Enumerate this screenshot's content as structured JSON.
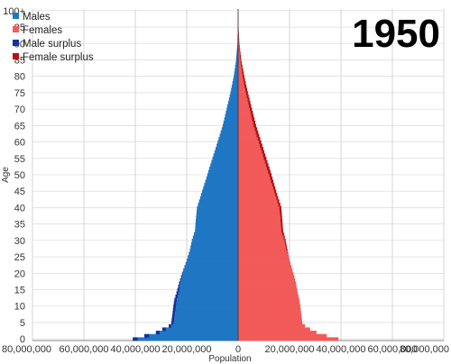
{
  "colors": {
    "males": "#1f77c4",
    "females": "#f25a5a",
    "male_surplus": "#12329c",
    "female_surplus": "#b80f12",
    "grid": "#d4d4d4",
    "axis": "#888888",
    "center_line": "#333333"
  },
  "chart_data": {
    "type": "bar",
    "orientation": "horizontal",
    "subtype": "population-pyramid",
    "title": "1950",
    "xlabel": "Population",
    "ylabel": "Age",
    "xlim": [
      -80000000,
      80000000
    ],
    "x_ticks": [
      -80000000,
      -60000000,
      -40000000,
      -20000000,
      0,
      20000000,
      40000000,
      60000000,
      80000000
    ],
    "x_tick_labels": [
      "80,000,000",
      "60,000,000",
      "40,000,000",
      "20,000,000",
      "0",
      "20,000,000",
      "40,000,000",
      "60,000,000",
      "80,000,000"
    ],
    "y_tick_labels": [
      "0",
      "5",
      "10",
      "15",
      "20",
      "25",
      "30",
      "35",
      "40",
      "45",
      "50",
      "55",
      "60",
      "65",
      "70",
      "75",
      "80",
      "85",
      "90",
      "95",
      "100+"
    ],
    "grid": true,
    "legend_position": "top-left",
    "legend": [
      "Males",
      "Females",
      "Male surplus",
      "Female surplus"
    ],
    "ages_note": "single years of age 0 to 100+",
    "males_anchor_ages": [
      0,
      1,
      2,
      3,
      4,
      5,
      8,
      10,
      12,
      14,
      17,
      20,
      24,
      27,
      30,
      33,
      36,
      40,
      45,
      50,
      55,
      60,
      65,
      70,
      75,
      80,
      85,
      90,
      95,
      100
    ],
    "males_anchor_values": [
      41000000,
      36500000,
      32000000,
      29500000,
      27000000,
      26000000,
      25500000,
      25200000,
      24800000,
      24000000,
      23000000,
      21800000,
      20000000,
      18800000,
      18000000,
      16800000,
      16500000,
      16000000,
      14000000,
      12000000,
      10000000,
      8000000,
      6000000,
      4500000,
      3000000,
      1700000,
      800000,
      300000,
      100000,
      20000
    ],
    "females_anchor_ages": [
      0,
      1,
      2,
      3,
      4,
      5,
      8,
      10,
      12,
      14,
      17,
      20,
      24,
      27,
      30,
      33,
      36,
      40,
      45,
      50,
      55,
      60,
      65,
      70,
      75,
      80,
      85,
      90,
      95,
      100
    ],
    "females_anchor_values": [
      39000000,
      34500000,
      30500000,
      28000000,
      26000000,
      25000000,
      24500000,
      24200000,
      23800000,
      23200000,
      22500000,
      21500000,
      20000000,
      19200000,
      18500000,
      17500000,
      17200000,
      16800000,
      14800000,
      13000000,
      11000000,
      9000000,
      7000000,
      5400000,
      3800000,
      2400000,
      1200000,
      500000,
      150000,
      30000
    ]
  }
}
